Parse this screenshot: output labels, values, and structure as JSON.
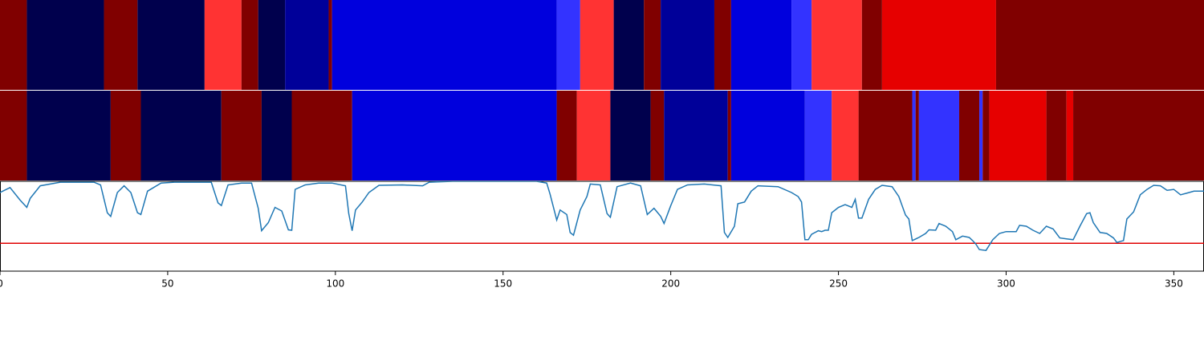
{
  "chart_data": {
    "type": "state-bars-line",
    "xlim": [
      0,
      359
    ],
    "xticks": [
      0,
      50,
      100,
      150,
      200,
      250,
      300,
      350
    ],
    "ylim": [
      0,
      1
    ],
    "threshold": 0.31,
    "threshold_color": "#e00000",
    "bars": [
      {
        "segments": [
          {
            "start": 0,
            "end": 8,
            "color": "#800000"
          },
          {
            "start": 8,
            "end": 31,
            "color": "#00004d"
          },
          {
            "start": 31,
            "end": 41,
            "color": "#800000"
          },
          {
            "start": 41,
            "end": 61,
            "color": "#00004d"
          },
          {
            "start": 61,
            "end": 72,
            "color": "#ff3333"
          },
          {
            "start": 72,
            "end": 77,
            "color": "#800000"
          },
          {
            "start": 77,
            "end": 85,
            "color": "#00004d"
          },
          {
            "start": 85,
            "end": 98,
            "color": "#000099"
          },
          {
            "start": 98,
            "end": 99,
            "color": "#800000"
          },
          {
            "start": 99,
            "end": 166,
            "color": "#0000dd"
          },
          {
            "start": 166,
            "end": 173,
            "color": "#3333ff"
          },
          {
            "start": 173,
            "end": 183,
            "color": "#ff3333"
          },
          {
            "start": 183,
            "end": 192,
            "color": "#00004d"
          },
          {
            "start": 192,
            "end": 197,
            "color": "#800000"
          },
          {
            "start": 197,
            "end": 213,
            "color": "#000099"
          },
          {
            "start": 213,
            "end": 218,
            "color": "#800000"
          },
          {
            "start": 218,
            "end": 236,
            "color": "#0000dd"
          },
          {
            "start": 236,
            "end": 242,
            "color": "#3333ff"
          },
          {
            "start": 242,
            "end": 257,
            "color": "#ff3333"
          },
          {
            "start": 257,
            "end": 263,
            "color": "#800000"
          },
          {
            "start": 263,
            "end": 297,
            "color": "#e60000"
          },
          {
            "start": 297,
            "end": 359,
            "color": "#800000"
          }
        ]
      },
      {
        "segments": [
          {
            "start": 0,
            "end": 8,
            "color": "#800000"
          },
          {
            "start": 8,
            "end": 33,
            "color": "#00004d"
          },
          {
            "start": 33,
            "end": 42,
            "color": "#800000"
          },
          {
            "start": 42,
            "end": 66,
            "color": "#00004d"
          },
          {
            "start": 66,
            "end": 78,
            "color": "#800000"
          },
          {
            "start": 78,
            "end": 87,
            "color": "#00004d"
          },
          {
            "start": 87,
            "end": 105,
            "color": "#800000"
          },
          {
            "start": 105,
            "end": 166,
            "color": "#0000dd"
          },
          {
            "start": 166,
            "end": 172,
            "color": "#800000"
          },
          {
            "start": 172,
            "end": 182,
            "color": "#ff3333"
          },
          {
            "start": 182,
            "end": 194,
            "color": "#00004d"
          },
          {
            "start": 194,
            "end": 198,
            "color": "#800000"
          },
          {
            "start": 198,
            "end": 217,
            "color": "#000099"
          },
          {
            "start": 217,
            "end": 218,
            "color": "#800000"
          },
          {
            "start": 218,
            "end": 240,
            "color": "#0000dd"
          },
          {
            "start": 240,
            "end": 248,
            "color": "#3333ff"
          },
          {
            "start": 248,
            "end": 256,
            "color": "#ff3333"
          },
          {
            "start": 256,
            "end": 272,
            "color": "#800000"
          },
          {
            "start": 272,
            "end": 273,
            "color": "#3333ff"
          },
          {
            "start": 273,
            "end": 274,
            "color": "#800000"
          },
          {
            "start": 274,
            "end": 286,
            "color": "#3333ff"
          },
          {
            "start": 286,
            "end": 292,
            "color": "#800000"
          },
          {
            "start": 292,
            "end": 293,
            "color": "#3333ff"
          },
          {
            "start": 293,
            "end": 295,
            "color": "#800000"
          },
          {
            "start": 295,
            "end": 312,
            "color": "#e60000"
          },
          {
            "start": 312,
            "end": 318,
            "color": "#800000"
          },
          {
            "start": 318,
            "end": 320,
            "color": "#e60000"
          },
          {
            "start": 320,
            "end": 359,
            "color": "#800000"
          }
        ]
      }
    ],
    "line": {
      "color": "#1f77b4",
      "x": [
        0,
        3,
        6,
        8,
        9,
        12,
        15,
        18,
        21,
        25,
        28,
        30,
        32,
        33,
        35,
        37,
        39,
        41,
        42,
        44,
        48,
        52,
        57,
        62,
        63,
        65,
        66,
        68,
        72,
        75,
        77,
        78,
        80,
        82,
        84,
        86,
        87,
        88,
        91,
        95,
        99,
        103,
        104,
        105,
        106,
        108,
        110,
        113,
        120,
        126,
        128,
        135,
        145,
        155,
        160,
        163,
        164,
        166,
        167,
        169,
        170,
        171,
        173,
        175,
        176,
        179,
        181,
        182,
        184,
        188,
        191,
        193,
        195,
        197,
        198,
        200,
        202,
        205,
        210,
        215,
        216,
        217,
        219,
        220,
        222,
        224,
        226,
        232,
        236,
        238,
        239,
        240,
        241,
        242,
        244,
        245,
        246,
        247,
        248,
        250,
        252,
        254,
        255,
        256,
        257,
        259,
        261,
        263,
        266,
        268,
        270,
        271,
        272,
        274,
        276,
        277,
        279,
        280,
        282,
        284,
        285,
        287,
        289,
        290,
        291,
        292,
        294,
        296,
        298,
        300,
        303,
        304,
        306,
        308,
        310,
        312,
        314,
        316,
        318,
        320,
        322,
        324,
        325,
        326,
        328,
        330,
        332,
        333,
        335,
        336,
        338,
        340,
        342,
        344,
        346,
        348,
        350,
        352,
        354,
        356,
        359
      ],
      "values": [
        0.875,
        0.93,
        0.79,
        0.71,
        0.81,
        0.95,
        0.97,
        0.99,
        0.99,
        0.99,
        0.99,
        0.96,
        0.65,
        0.61,
        0.875,
        0.95,
        0.875,
        0.65,
        0.63,
        0.89,
        0.98,
        0.99,
        0.99,
        0.99,
        0.99,
        0.76,
        0.73,
        0.96,
        0.98,
        0.98,
        0.7,
        0.45,
        0.54,
        0.71,
        0.67,
        0.46,
        0.455,
        0.91,
        0.96,
        0.98,
        0.98,
        0.95,
        0.64,
        0.45,
        0.68,
        0.77,
        0.875,
        0.955,
        0.96,
        0.95,
        0.99,
        1.0,
        1.0,
        1.0,
        1.0,
        0.98,
        0.86,
        0.57,
        0.68,
        0.63,
        0.43,
        0.4,
        0.68,
        0.83,
        0.97,
        0.96,
        0.64,
        0.6,
        0.94,
        0.98,
        0.95,
        0.63,
        0.7,
        0.61,
        0.53,
        0.73,
        0.91,
        0.96,
        0.97,
        0.95,
        0.43,
        0.375,
        0.5,
        0.75,
        0.77,
        0.89,
        0.95,
        0.94,
        0.875,
        0.83,
        0.77,
        0.35,
        0.35,
        0.41,
        0.45,
        0.44,
        0.455,
        0.455,
        0.65,
        0.71,
        0.74,
        0.71,
        0.8,
        0.59,
        0.59,
        0.8,
        0.91,
        0.955,
        0.94,
        0.83,
        0.625,
        0.58,
        0.34,
        0.375,
        0.42,
        0.46,
        0.455,
        0.53,
        0.5,
        0.44,
        0.35,
        0.39,
        0.375,
        0.34,
        0.3,
        0.24,
        0.23,
        0.35,
        0.42,
        0.44,
        0.44,
        0.51,
        0.5,
        0.455,
        0.42,
        0.5,
        0.47,
        0.37,
        0.36,
        0.35,
        0.5,
        0.64,
        0.65,
        0.54,
        0.43,
        0.42,
        0.37,
        0.32,
        0.34,
        0.58,
        0.66,
        0.85,
        0.91,
        0.955,
        0.95,
        0.9,
        0.91,
        0.85,
        0.87,
        0.89,
        0.89
      ]
    }
  }
}
